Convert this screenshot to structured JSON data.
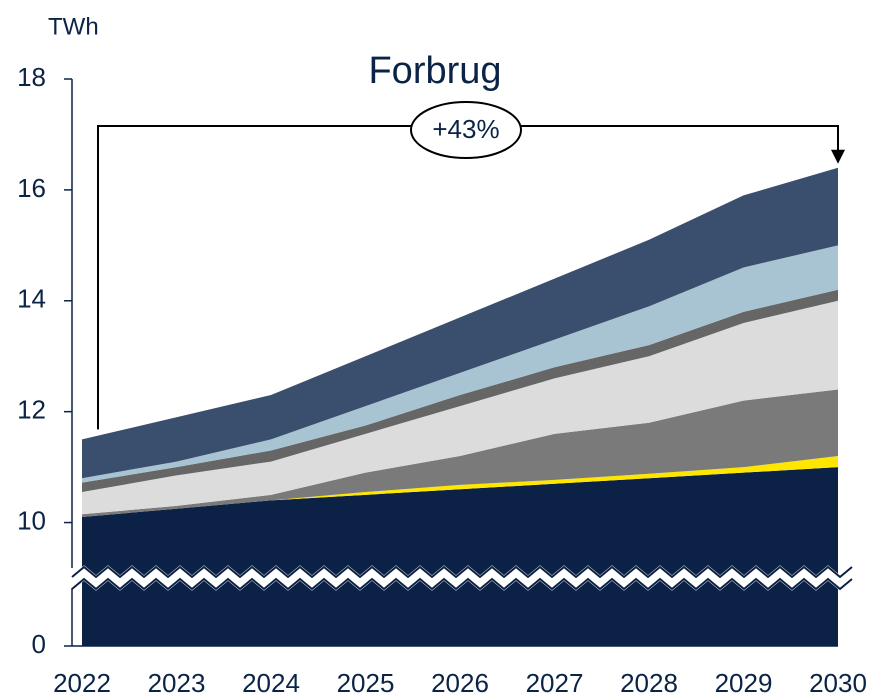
{
  "chart_data": {
    "type": "stacked_area",
    "title": "Forbrug",
    "y_label": "TWh",
    "annotation": "+43%",
    "x": [
      2022,
      2023,
      2024,
      2025,
      2026,
      2027,
      2028,
      2029,
      2030
    ],
    "xlim": [
      2022,
      2030
    ],
    "xticks": [
      2022,
      2023,
      2024,
      2025,
      2026,
      2027,
      2028,
      2029,
      2030
    ],
    "ylim": [
      0,
      18
    ],
    "yticks": [
      0,
      10,
      12,
      14,
      16,
      18
    ],
    "y_break": 9,
    "series": [
      {
        "color": "#0b2145",
        "values": [
          10.1,
          10.25,
          10.4,
          10.5,
          10.6,
          10.7,
          10.8,
          10.9,
          11.0
        ]
      },
      {
        "color": "#ffe600",
        "values": [
          0,
          0,
          0,
          0.05,
          0.08,
          0.07,
          0.08,
          0.1,
          0.2
        ]
      },
      {
        "color": "#7a7a7a",
        "values": [
          0.05,
          0.05,
          0.1,
          0.35,
          0.52,
          0.83,
          0.92,
          1.2,
          1.2
        ]
      },
      {
        "color": "#dcdcdc",
        "values": [
          0.4,
          0.55,
          0.6,
          0.7,
          0.9,
          1.0,
          1.2,
          1.4,
          1.6
        ]
      },
      {
        "color": "#666666",
        "values": [
          0.17,
          0.15,
          0.2,
          0.15,
          0.2,
          0.2,
          0.2,
          0.2,
          0.2
        ]
      },
      {
        "color": "#a8c4d2",
        "values": [
          0.08,
          0.1,
          0.2,
          0.35,
          0.4,
          0.5,
          0.7,
          0.8,
          0.8
        ]
      },
      {
        "color": "#3a4e6e",
        "values": [
          0.7,
          0.8,
          0.8,
          0.9,
          1.0,
          1.1,
          1.2,
          1.3,
          1.4
        ]
      }
    ]
  }
}
